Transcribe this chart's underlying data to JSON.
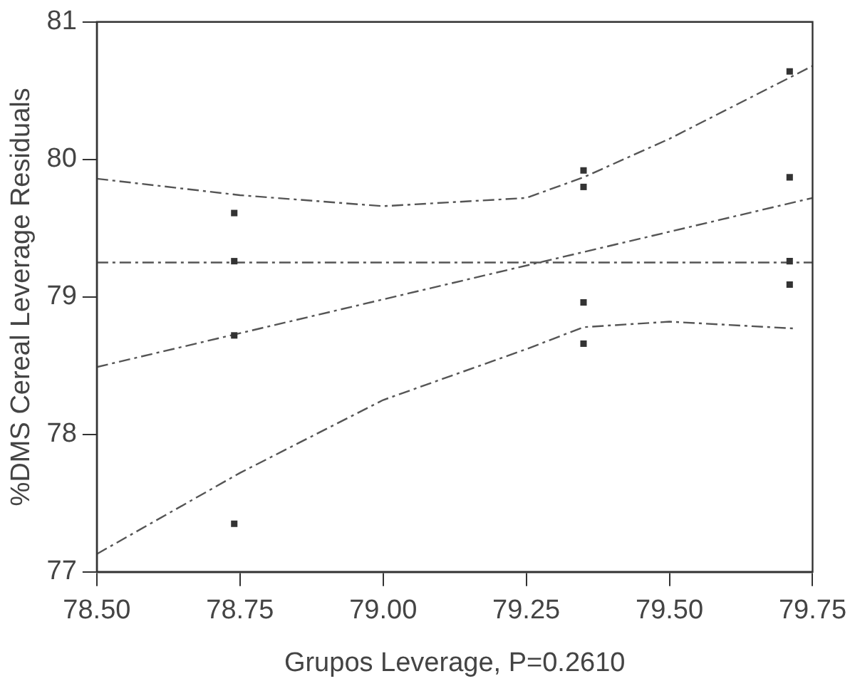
{
  "chart_data": {
    "type": "scatter",
    "xlabel": "Grupos Leverage, P=0.2610",
    "ylabel": "%DMS Cereal Leverage Residuals",
    "xlim": [
      78.5,
      79.75
    ],
    "xticks": [
      {
        "value": 78.5,
        "label": "78.50"
      },
      {
        "value": 78.75,
        "label": "78.75"
      },
      {
        "value": 79.0,
        "label": "79.00"
      },
      {
        "value": 79.25,
        "label": "79.25"
      },
      {
        "value": 79.5,
        "label": "79.50"
      },
      {
        "value": 79.75,
        "label": "79.75"
      }
    ],
    "ylim": [
      77,
      81
    ],
    "yticks": [
      77,
      78,
      79,
      80,
      81
    ],
    "grid": false,
    "legend": false,
    "series": [
      {
        "type": "scatter",
        "marker": "square",
        "color": "#333333",
        "x": [
          78.74,
          78.74,
          78.74,
          78.74,
          79.35,
          79.35,
          79.35,
          79.35,
          79.71,
          79.71,
          79.71,
          79.71
        ],
        "values": [
          79.61,
          79.26,
          78.72,
          77.35,
          79.92,
          79.8,
          78.96,
          78.66,
          80.64,
          79.87,
          79.26,
          79.09
        ]
      },
      {
        "type": "line",
        "marker": "none",
        "line_style": "dashed",
        "color": "#555555",
        "x": [
          78.5,
          79.75
        ],
        "values": [
          78.49,
          79.72
        ]
      },
      {
        "type": "line",
        "marker": "none",
        "line_style": "dashed",
        "color": "#555555",
        "x": [
          78.5,
          78.75,
          79.0,
          79.25,
          79.35,
          79.5,
          79.75
        ],
        "values": [
          79.86,
          79.74,
          79.66,
          79.72,
          79.87,
          80.15,
          80.68
        ]
      },
      {
        "type": "line",
        "marker": "none",
        "line_style": "dashed",
        "color": "#555555",
        "x": [
          78.5,
          78.75,
          79.0,
          79.25,
          79.35,
          79.5,
          79.72
        ],
        "values": [
          77.13,
          77.72,
          78.25,
          78.62,
          78.78,
          78.82,
          78.77
        ]
      }
    ],
    "ref_lines": [
      {
        "axis": "y",
        "value": 79.25,
        "line_style": "dashed",
        "color": "#555555"
      }
    ]
  }
}
